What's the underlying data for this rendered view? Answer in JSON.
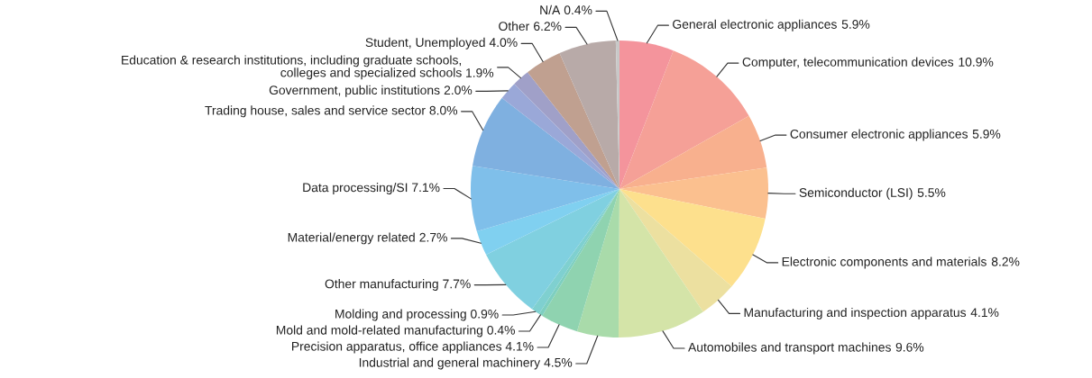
{
  "chart_data": {
    "type": "pie",
    "categories": [
      "General electronic appliances",
      "Computer, telecommunication devices",
      "Consumer electronic appliances",
      "Semiconductor (LSI)",
      "Electronic components and materials",
      "Manufacturing and inspection apparatus",
      "Automobiles and transport machines",
      "Industrial and general machinery",
      "Precision apparatus, office appliances",
      "Mold and mold-related manufacturing",
      "Molding and processing",
      "Other manufacturing",
      "Material/energy related",
      "Data processing/SI",
      "Trading house, sales and service sector",
      "Government, public institutions",
      "Education & research institutions, including graduate schools,\ncolleges and specialized schools",
      "Student, Unemployed",
      "Other",
      "N/A"
    ],
    "values": [
      5.9,
      10.9,
      5.9,
      5.5,
      8.2,
      4.1,
      9.6,
      4.5,
      4.1,
      0.4,
      0.9,
      7.7,
      2.7,
      7.1,
      8.0,
      2.0,
      1.9,
      4.0,
      6.2,
      0.4
    ],
    "colors": [
      "#f4949c",
      "#f5a097",
      "#f8b08e",
      "#fbc08f",
      "#fde08d",
      "#ece0a0",
      "#d4e4a8",
      "#a9dbaa",
      "#8fd3b0",
      "#7ecfc0",
      "#7fd0d0",
      "#80d0e0",
      "#80d0f0",
      "#7fbfea",
      "#7fb0e0",
      "#9aa8d8",
      "#a0a0c8",
      "#c0a090",
      "#b8aaa8",
      "#c8c8c8"
    ],
    "value_labels": [
      "5.9%",
      "10.9%",
      "5.9%",
      "5.5%",
      "8.2%",
      "4.1%",
      "9.6%",
      "4.5%",
      "4.1%",
      "0.4%",
      "0.9%",
      "7.7%",
      "2.7%",
      "7.1%",
      "8.0%",
      "2.0%",
      "1.9%",
      "4.0%",
      "6.2%",
      "0.4%"
    ],
    "legend": false
  }
}
